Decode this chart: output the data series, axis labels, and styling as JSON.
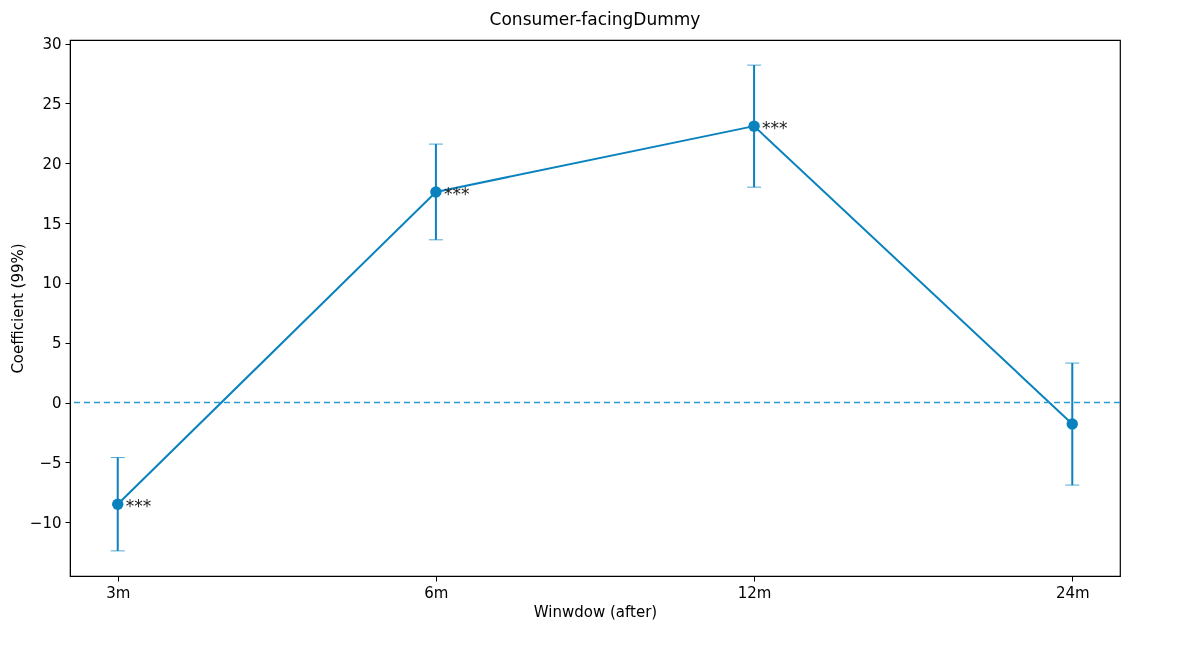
{
  "chart_data": {
    "type": "line",
    "title": "Consumer-facingDummy",
    "xlabel": "Winwdow (after)",
    "ylabel": "Coefficient (99%)",
    "categories": [
      "3m",
      "6m",
      "12m",
      "24m"
    ],
    "series": [
      {
        "color": "#0a82bd",
        "values": [
          -8.5,
          17.6,
          23.1,
          -1.8
        ],
        "errors": [
          3.9,
          4.0,
          5.1,
          5.1
        ]
      }
    ],
    "ylim": [
      -14.5,
      30.3
    ],
    "yticks": [
      {
        "value": -10,
        "label": "−10"
      },
      {
        "value": -5,
        "label": "−5"
      },
      0,
      5,
      10,
      15,
      20,
      25,
      30
    ],
    "ref_lines": [
      {
        "axis": "y",
        "value": 0,
        "color": "#2a9bd4",
        "line_style": "dashed"
      }
    ],
    "annotations": [
      {
        "text": "***",
        "x": "3m",
        "y": -8.5
      },
      {
        "text": "***",
        "x": "6m",
        "y": 17.6
      },
      {
        "text": "***",
        "x": "12m",
        "y": 23.1
      }
    ],
    "marker": "circle",
    "line_style": "solid",
    "grid": false
  }
}
